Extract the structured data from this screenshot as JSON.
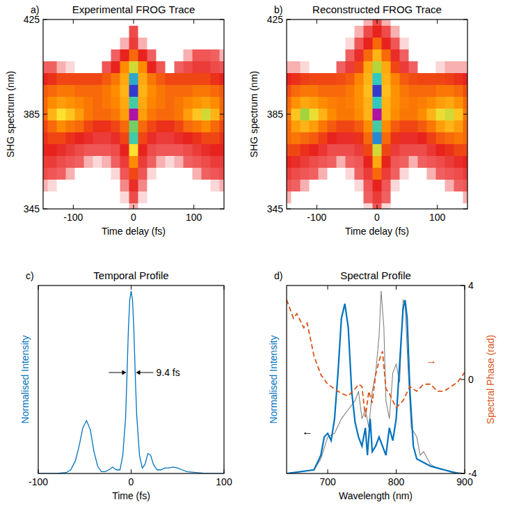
{
  "chart_data": [
    {
      "type": "heatmap",
      "title": "Experimental FROG Trace",
      "annotations": [
        "a)"
      ],
      "x_label": "Time delay (fs)",
      "y_label": "SHG spectrum (nm)",
      "xlim": [
        -150,
        150
      ],
      "ylim": [
        345,
        425
      ],
      "xticks": [
        -100,
        0,
        100
      ],
      "yticks": [
        345,
        385,
        425
      ],
      "x": [
        -150,
        -135,
        -120,
        -105,
        -90,
        -75,
        -60,
        -45,
        -30,
        -15,
        0,
        15,
        30,
        45,
        60,
        75,
        90,
        105,
        120,
        135,
        150
      ],
      "y": [
        345,
        350,
        355,
        360,
        365,
        370,
        375,
        380,
        385,
        390,
        395,
        400,
        405,
        410,
        415,
        420,
        425
      ],
      "z": [
        [
          0,
          0,
          0,
          0,
          0,
          0,
          0,
          0,
          0,
          0,
          0.06,
          0,
          0,
          0,
          0,
          0,
          0,
          0,
          0,
          0,
          0
        ],
        [
          0,
          0,
          0,
          0,
          0,
          0,
          0,
          0,
          0,
          0.05,
          0.12,
          0.05,
          0,
          0,
          0,
          0,
          0,
          0,
          0,
          0,
          0
        ],
        [
          0.06,
          0.05,
          0,
          0,
          0,
          0,
          0,
          0,
          0,
          0.07,
          0.18,
          0.07,
          0,
          0,
          0,
          0,
          0,
          0,
          0,
          0.05,
          0.06
        ],
        [
          0.12,
          0.1,
          0.08,
          0.06,
          0,
          0,
          0,
          0,
          0.05,
          0.1,
          0.25,
          0.1,
          0.05,
          0,
          0,
          0,
          0,
          0.06,
          0.08,
          0.1,
          0.12
        ],
        [
          0.15,
          0.15,
          0.12,
          0.1,
          0.08,
          0.06,
          0.05,
          0.06,
          0.08,
          0.15,
          0.35,
          0.15,
          0.08,
          0.06,
          0.05,
          0.06,
          0.08,
          0.1,
          0.12,
          0.15,
          0.15
        ],
        [
          0.2,
          0.2,
          0.18,
          0.15,
          0.12,
          0.1,
          0.1,
          0.1,
          0.12,
          0.2,
          0.5,
          0.2,
          0.12,
          0.1,
          0.1,
          0.1,
          0.12,
          0.15,
          0.18,
          0.2,
          0.2
        ],
        [
          0.22,
          0.25,
          0.25,
          0.22,
          0.2,
          0.18,
          0.15,
          0.15,
          0.18,
          0.25,
          0.7,
          0.25,
          0.18,
          0.15,
          0.15,
          0.18,
          0.2,
          0.22,
          0.25,
          0.25,
          0.22
        ],
        [
          0.25,
          0.3,
          0.35,
          0.32,
          0.3,
          0.25,
          0.22,
          0.22,
          0.25,
          0.3,
          0.65,
          0.3,
          0.25,
          0.22,
          0.22,
          0.25,
          0.3,
          0.32,
          0.35,
          0.3,
          0.25
        ],
        [
          0.3,
          0.42,
          0.5,
          0.45,
          0.38,
          0.32,
          0.3,
          0.3,
          0.32,
          0.38,
          0.98,
          0.38,
          0.32,
          0.3,
          0.3,
          0.32,
          0.38,
          0.45,
          0.55,
          0.42,
          0.3
        ],
        [
          0.3,
          0.35,
          0.38,
          0.36,
          0.34,
          0.32,
          0.3,
          0.32,
          0.34,
          0.4,
          0.7,
          0.4,
          0.34,
          0.32,
          0.3,
          0.32,
          0.34,
          0.36,
          0.38,
          0.35,
          0.3
        ],
        [
          0.28,
          0.3,
          0.32,
          0.32,
          0.3,
          0.3,
          0.3,
          0.32,
          0.35,
          0.42,
          0.88,
          0.42,
          0.35,
          0.32,
          0.3,
          0.3,
          0.3,
          0.32,
          0.32,
          0.3,
          0.28
        ],
        [
          0.2,
          0.22,
          0.25,
          0.25,
          0.25,
          0.25,
          0.25,
          0.28,
          0.32,
          0.4,
          0.75,
          0.4,
          0.32,
          0.28,
          0.25,
          0.25,
          0.25,
          0.25,
          0.25,
          0.22,
          0.2
        ],
        [
          0.08,
          0.08,
          0.06,
          0.05,
          0,
          0,
          0,
          0.1,
          0.2,
          0.35,
          0.55,
          0.35,
          0.2,
          0.1,
          0,
          0.08,
          0.12,
          0.15,
          0.15,
          0.12,
          0.1
        ],
        [
          0,
          0,
          0,
          0,
          0,
          0,
          0,
          0,
          0.08,
          0.2,
          0.3,
          0.2,
          0.08,
          0,
          0,
          0,
          0.06,
          0.1,
          0.1,
          0.08,
          0.06
        ],
        [
          0,
          0,
          0,
          0,
          0,
          0,
          0,
          0,
          0,
          0.06,
          0.15,
          0.06,
          0,
          0,
          0,
          0,
          0,
          0,
          0,
          0,
          0
        ],
        [
          0,
          0,
          0,
          0,
          0,
          0,
          0,
          0,
          0,
          0,
          0.12,
          0,
          0,
          0,
          0,
          0,
          0,
          0,
          0,
          0,
          0
        ],
        [
          0,
          0,
          0,
          0,
          0,
          0,
          0,
          0,
          0,
          0,
          0,
          0,
          0,
          0,
          0,
          0,
          0,
          0,
          0,
          0,
          0
        ]
      ]
    },
    {
      "type": "heatmap",
      "title": "Reconstructed FROG Trace",
      "annotations": [
        "b)"
      ],
      "x_label": "Time delay (fs)",
      "y_label": "SHG spectrum (nm)",
      "xlim": [
        -150,
        150
      ],
      "ylim": [
        345,
        425
      ],
      "xticks": [
        -100,
        0,
        100
      ],
      "yticks": [
        345,
        385,
        425
      ],
      "x": [
        -150,
        -135,
        -120,
        -105,
        -90,
        -75,
        -60,
        -45,
        -30,
        -15,
        0,
        15,
        30,
        45,
        60,
        75,
        90,
        105,
        120,
        135,
        150
      ],
      "y": [
        345,
        350,
        355,
        360,
        365,
        370,
        375,
        380,
        385,
        390,
        395,
        400,
        405,
        410,
        415,
        420,
        425
      ],
      "z": [
        [
          0,
          0,
          0,
          0,
          0,
          0,
          0,
          0,
          0,
          0.05,
          0.1,
          0.05,
          0,
          0,
          0,
          0,
          0,
          0,
          0,
          0,
          0
        ],
        [
          0.06,
          0,
          0,
          0,
          0,
          0,
          0,
          0,
          0,
          0.08,
          0.15,
          0.08,
          0,
          0,
          0,
          0,
          0,
          0,
          0,
          0,
          0.06
        ],
        [
          0.1,
          0.08,
          0.06,
          0,
          0,
          0,
          0,
          0,
          0.05,
          0.1,
          0.2,
          0.1,
          0.05,
          0,
          0,
          0,
          0,
          0,
          0.06,
          0.08,
          0.1
        ],
        [
          0.15,
          0.12,
          0.1,
          0.08,
          0.06,
          0,
          0,
          0.05,
          0.08,
          0.15,
          0.3,
          0.15,
          0.08,
          0.05,
          0,
          0,
          0.06,
          0.08,
          0.1,
          0.12,
          0.15
        ],
        [
          0.2,
          0.18,
          0.15,
          0.12,
          0.1,
          0.08,
          0.06,
          0.08,
          0.1,
          0.2,
          0.4,
          0.2,
          0.1,
          0.08,
          0.06,
          0.08,
          0.1,
          0.12,
          0.15,
          0.18,
          0.2
        ],
        [
          0.25,
          0.25,
          0.22,
          0.2,
          0.16,
          0.12,
          0.12,
          0.12,
          0.15,
          0.25,
          0.55,
          0.25,
          0.15,
          0.12,
          0.12,
          0.12,
          0.16,
          0.2,
          0.22,
          0.25,
          0.25
        ],
        [
          0.3,
          0.32,
          0.3,
          0.28,
          0.24,
          0.2,
          0.18,
          0.18,
          0.22,
          0.3,
          0.78,
          0.3,
          0.22,
          0.18,
          0.18,
          0.2,
          0.24,
          0.28,
          0.3,
          0.32,
          0.3
        ],
        [
          0.3,
          0.38,
          0.42,
          0.38,
          0.32,
          0.28,
          0.25,
          0.25,
          0.28,
          0.35,
          0.7,
          0.35,
          0.28,
          0.25,
          0.25,
          0.28,
          0.32,
          0.38,
          0.42,
          0.38,
          0.3
        ],
        [
          0.32,
          0.45,
          0.6,
          0.52,
          0.42,
          0.35,
          0.32,
          0.32,
          0.35,
          0.42,
          0.98,
          0.42,
          0.35,
          0.32,
          0.32,
          0.35,
          0.42,
          0.52,
          0.55,
          0.45,
          0.32
        ],
        [
          0.3,
          0.36,
          0.4,
          0.38,
          0.35,
          0.33,
          0.32,
          0.33,
          0.36,
          0.42,
          0.72,
          0.42,
          0.36,
          0.33,
          0.32,
          0.33,
          0.35,
          0.38,
          0.4,
          0.36,
          0.3
        ],
        [
          0.26,
          0.3,
          0.32,
          0.32,
          0.3,
          0.3,
          0.3,
          0.32,
          0.36,
          0.44,
          0.88,
          0.44,
          0.36,
          0.32,
          0.3,
          0.3,
          0.3,
          0.32,
          0.32,
          0.3,
          0.26
        ],
        [
          0.2,
          0.22,
          0.24,
          0.25,
          0.25,
          0.25,
          0.26,
          0.28,
          0.34,
          0.42,
          0.72,
          0.42,
          0.34,
          0.28,
          0.26,
          0.25,
          0.25,
          0.25,
          0.24,
          0.22,
          0.2
        ],
        [
          0.06,
          0.06,
          0.05,
          0,
          0,
          0,
          0.08,
          0.15,
          0.25,
          0.4,
          0.58,
          0.4,
          0.25,
          0.15,
          0.08,
          0,
          0,
          0.05,
          0.06,
          0.06,
          0.06
        ],
        [
          0,
          0,
          0,
          0,
          0,
          0,
          0,
          0.08,
          0.18,
          0.3,
          0.42,
          0.3,
          0.18,
          0.08,
          0,
          0,
          0,
          0,
          0,
          0,
          0
        ],
        [
          0,
          0,
          0,
          0,
          0,
          0,
          0,
          0.05,
          0.1,
          0.2,
          0.3,
          0.2,
          0.1,
          0.05,
          0,
          0,
          0,
          0,
          0,
          0,
          0
        ],
        [
          0,
          0,
          0,
          0,
          0,
          0,
          0,
          0,
          0.06,
          0.12,
          0.2,
          0.12,
          0.06,
          0,
          0,
          0,
          0,
          0,
          0,
          0,
          0
        ],
        [
          0,
          0,
          0,
          0,
          0,
          0,
          0,
          0,
          0,
          0.06,
          0.12,
          0.06,
          0,
          0,
          0,
          0,
          0,
          0,
          0,
          0,
          0
        ]
      ]
    },
    {
      "type": "line",
      "title": "Temporal Profile",
      "annotations": [
        "c)",
        "9.4 fs"
      ],
      "x_label": "Time (fs)",
      "y_label": "Normalised Intensity",
      "color": "#0072bd",
      "xlim": [
        -100,
        100
      ],
      "ylim": [
        0,
        1.03
      ],
      "xticks": [
        -100,
        0,
        100
      ],
      "yticks": [],
      "tick_labels": "x",
      "x": [
        -100,
        -90,
        -80,
        -70,
        -65,
        -60,
        -56,
        -52,
        -48,
        -44,
        -40,
        -36,
        -32,
        -28,
        -24,
        -20,
        -16,
        -12,
        -9,
        -6,
        -4.7,
        -3,
        -1.5,
        0,
        1.5,
        3,
        4.7,
        6,
        9,
        12,
        15,
        18,
        21,
        24,
        28,
        32,
        36,
        40,
        45,
        50,
        55,
        60,
        70,
        80,
        90,
        100
      ],
      "values": [
        0,
        0,
        0,
        0.005,
        0.02,
        0.07,
        0.15,
        0.25,
        0.29,
        0.24,
        0.12,
        0.04,
        0.01,
        0.01,
        0.02,
        0.035,
        0.02,
        0.02,
        0.1,
        0.3,
        0.5,
        0.78,
        0.95,
        1.0,
        0.95,
        0.78,
        0.5,
        0.32,
        0.1,
        0.03,
        0.05,
        0.11,
        0.1,
        0.05,
        0.02,
        0.02,
        0.03,
        0.03,
        0.035,
        0.03,
        0.02,
        0.01,
        0.005,
        0,
        0,
        0
      ]
    },
    {
      "type": "line",
      "title": "Spectral Profile",
      "annotations": [
        "d)",
        "←",
        "→"
      ],
      "x_label": "Wavelength (nm)",
      "y_label": "Normalised Intensity",
      "y2_label": "Spectral Phase (rad)",
      "xlim": [
        640,
        900
      ],
      "ylim": [
        0,
        1.03
      ],
      "xticks": [
        700,
        800,
        900
      ],
      "yticks": [],
      "y2lim": [
        -4,
        4
      ],
      "y2ticks": [
        -4,
        0,
        4
      ],
      "tick_labels": "x",
      "series": [
        {
          "color": "#0072bd",
          "line_style": "solid",
          "x": [
            640,
            680,
            690,
            695,
            700,
            705,
            710,
            715,
            720,
            725,
            730,
            735,
            740,
            745,
            750,
            755,
            758,
            762,
            765,
            770,
            775,
            780,
            785,
            790,
            795,
            800,
            805,
            810,
            813,
            816,
            820,
            825,
            830,
            840,
            850,
            860,
            870,
            880,
            890,
            900
          ],
          "values": [
            0,
            0.02,
            0.1,
            0.2,
            0.22,
            0.18,
            0.3,
            0.55,
            0.85,
            0.93,
            0.8,
            0.45,
            0.28,
            0.2,
            0.15,
            0.25,
            0.1,
            0.3,
            0.12,
            0.15,
            0.2,
            0.15,
            0.1,
            0.25,
            0.18,
            0.3,
            0.6,
            0.9,
            0.95,
            0.85,
            0.45,
            0.15,
            0.08,
            0.06,
            0.04,
            0.03,
            0.02,
            0.01,
            0,
            0
          ]
        },
        {
          "color": "#808080",
          "line_style": "solid",
          "x": [
            640,
            680,
            690,
            700,
            710,
            720,
            730,
            740,
            745,
            750,
            755,
            760,
            765,
            770,
            775,
            778,
            782,
            785,
            790,
            795,
            800,
            805,
            810,
            813,
            817,
            822,
            830,
            835,
            840,
            850,
            860,
            880,
            900
          ],
          "values": [
            0,
            0.02,
            0.08,
            0.2,
            0.22,
            0.3,
            0.35,
            0.4,
            0.45,
            0.3,
            0.35,
            0.25,
            0.45,
            0.55,
            0.75,
            1.0,
            0.8,
            0.4,
            0.3,
            0.55,
            0.6,
            0.5,
            0.95,
            0.93,
            0.6,
            0.25,
            0.2,
            0.1,
            0.12,
            0.05,
            0.03,
            0.01,
            0
          ]
        },
        {
          "color": "#d95319",
          "line_style": "dashed",
          "axis": "y2",
          "x": [
            640,
            650,
            655,
            665,
            670,
            680,
            690,
            700,
            710,
            720,
            730,
            740,
            745,
            750,
            755,
            760,
            765,
            770,
            775,
            780,
            785,
            790,
            800,
            810,
            820,
            830,
            840,
            850,
            860,
            870,
            880,
            890,
            900
          ],
          "values": [
            3.4,
            2.6,
            2.8,
            2.2,
            2.4,
            1.0,
            0.2,
            -0.2,
            -0.4,
            -0.6,
            -0.7,
            -0.4,
            -0.2,
            -0.3,
            -1.6,
            -0.5,
            -1.0,
            0.2,
            0.8,
            1.2,
            -0.4,
            -0.6,
            -1.2,
            -0.9,
            -0.3,
            -0.5,
            -0.2,
            -0.2,
            -0.5,
            -0.5,
            -0.3,
            -0.1,
            0.3
          ]
        }
      ]
    }
  ]
}
